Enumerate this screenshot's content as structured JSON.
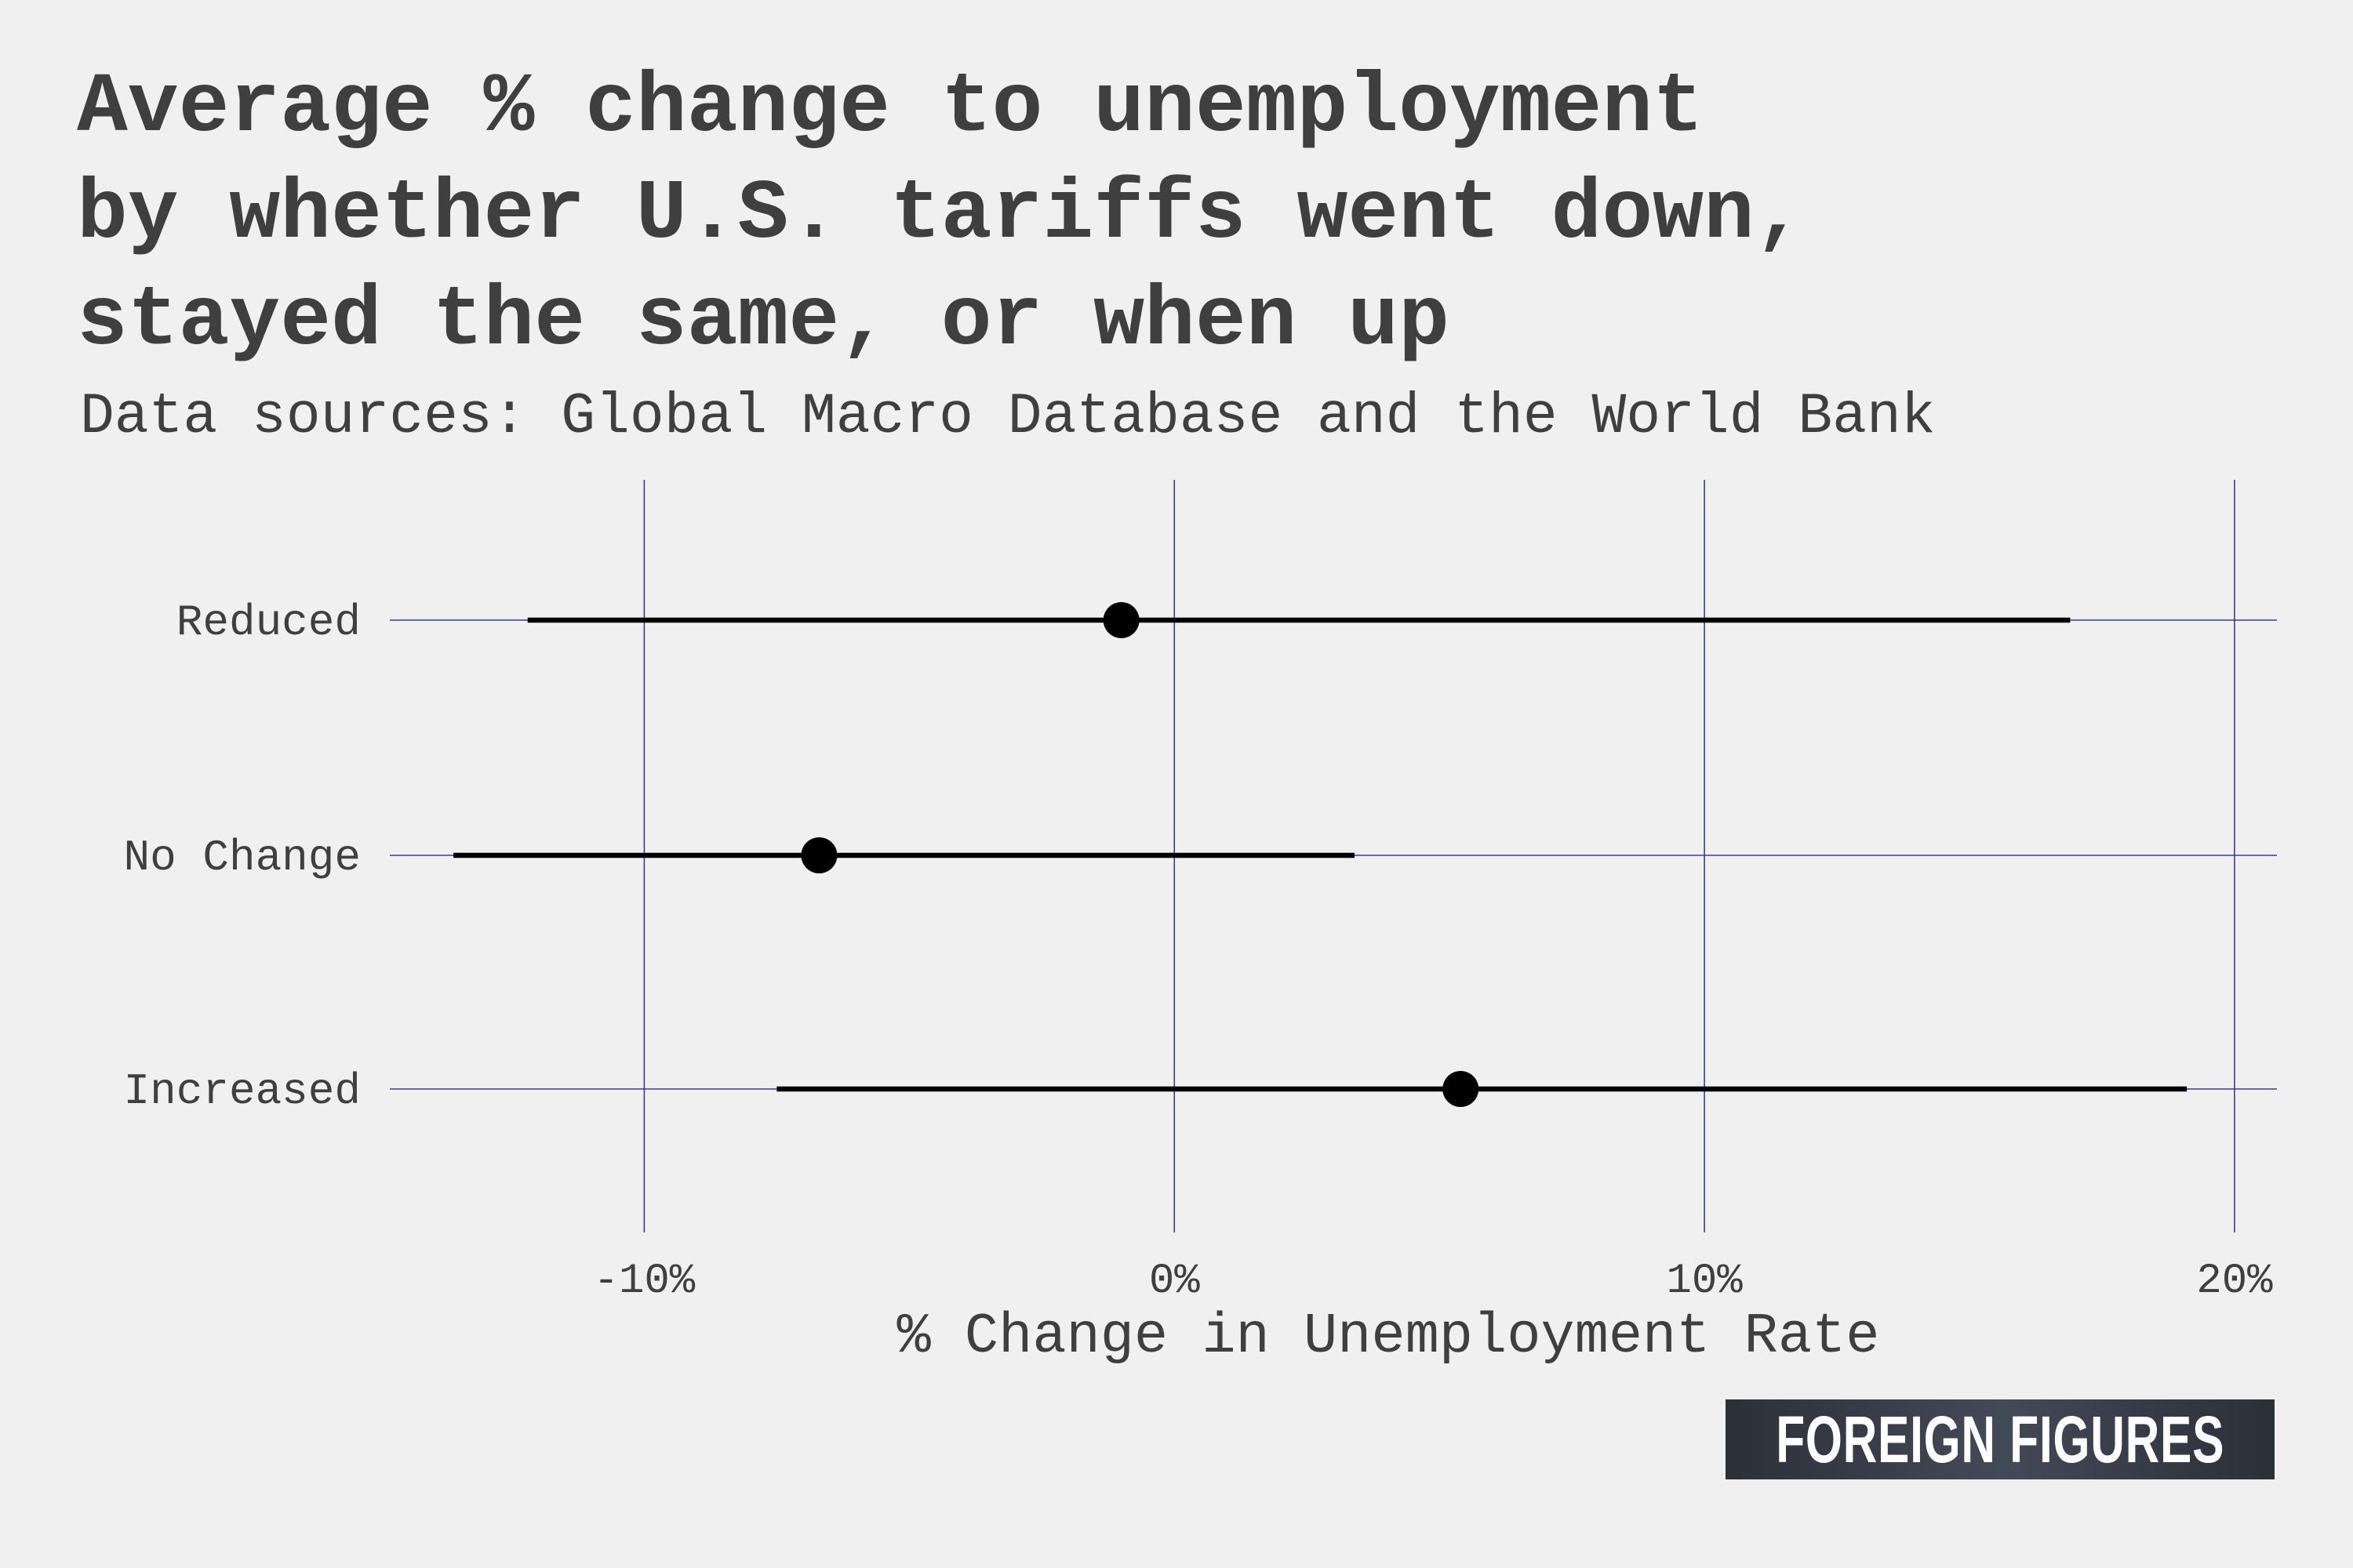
{
  "header": {
    "title": "Average % change to unemployment\nby whether U.S. tariffs went down,\nstayed the same, or when up",
    "subtitle": "Data sources: Global Macro Database and the World Bank"
  },
  "chart_data": {
    "type": "scatter",
    "title": "Average % change to unemployment by whether U.S. tariffs went down, stayed the same, or when up",
    "subtitle": "Data sources: Global Macro Database and the World Bank",
    "xlabel": "% Change in Unemployment Rate",
    "ylabel": "",
    "categories": [
      "Reduced",
      "No Change",
      "Increased"
    ],
    "series": [
      {
        "values": [
          -1.0,
          -6.7,
          5.4
        ],
        "lower": [
          -12.2,
          -13.6,
          -7.5
        ],
        "upper": [
          16.9,
          3.4,
          19.1
        ]
      }
    ],
    "xlim": [
      -14.8,
      20.8
    ],
    "xticks": [
      -10,
      0,
      10,
      20
    ],
    "xtick_labels": [
      "-10%",
      "0%",
      "10%",
      "20%"
    ],
    "grid": true,
    "grid_color": "#3c3c8c",
    "point_color": "#000000"
  },
  "branding": {
    "logo_text": "FOREIGN FIGURES"
  }
}
